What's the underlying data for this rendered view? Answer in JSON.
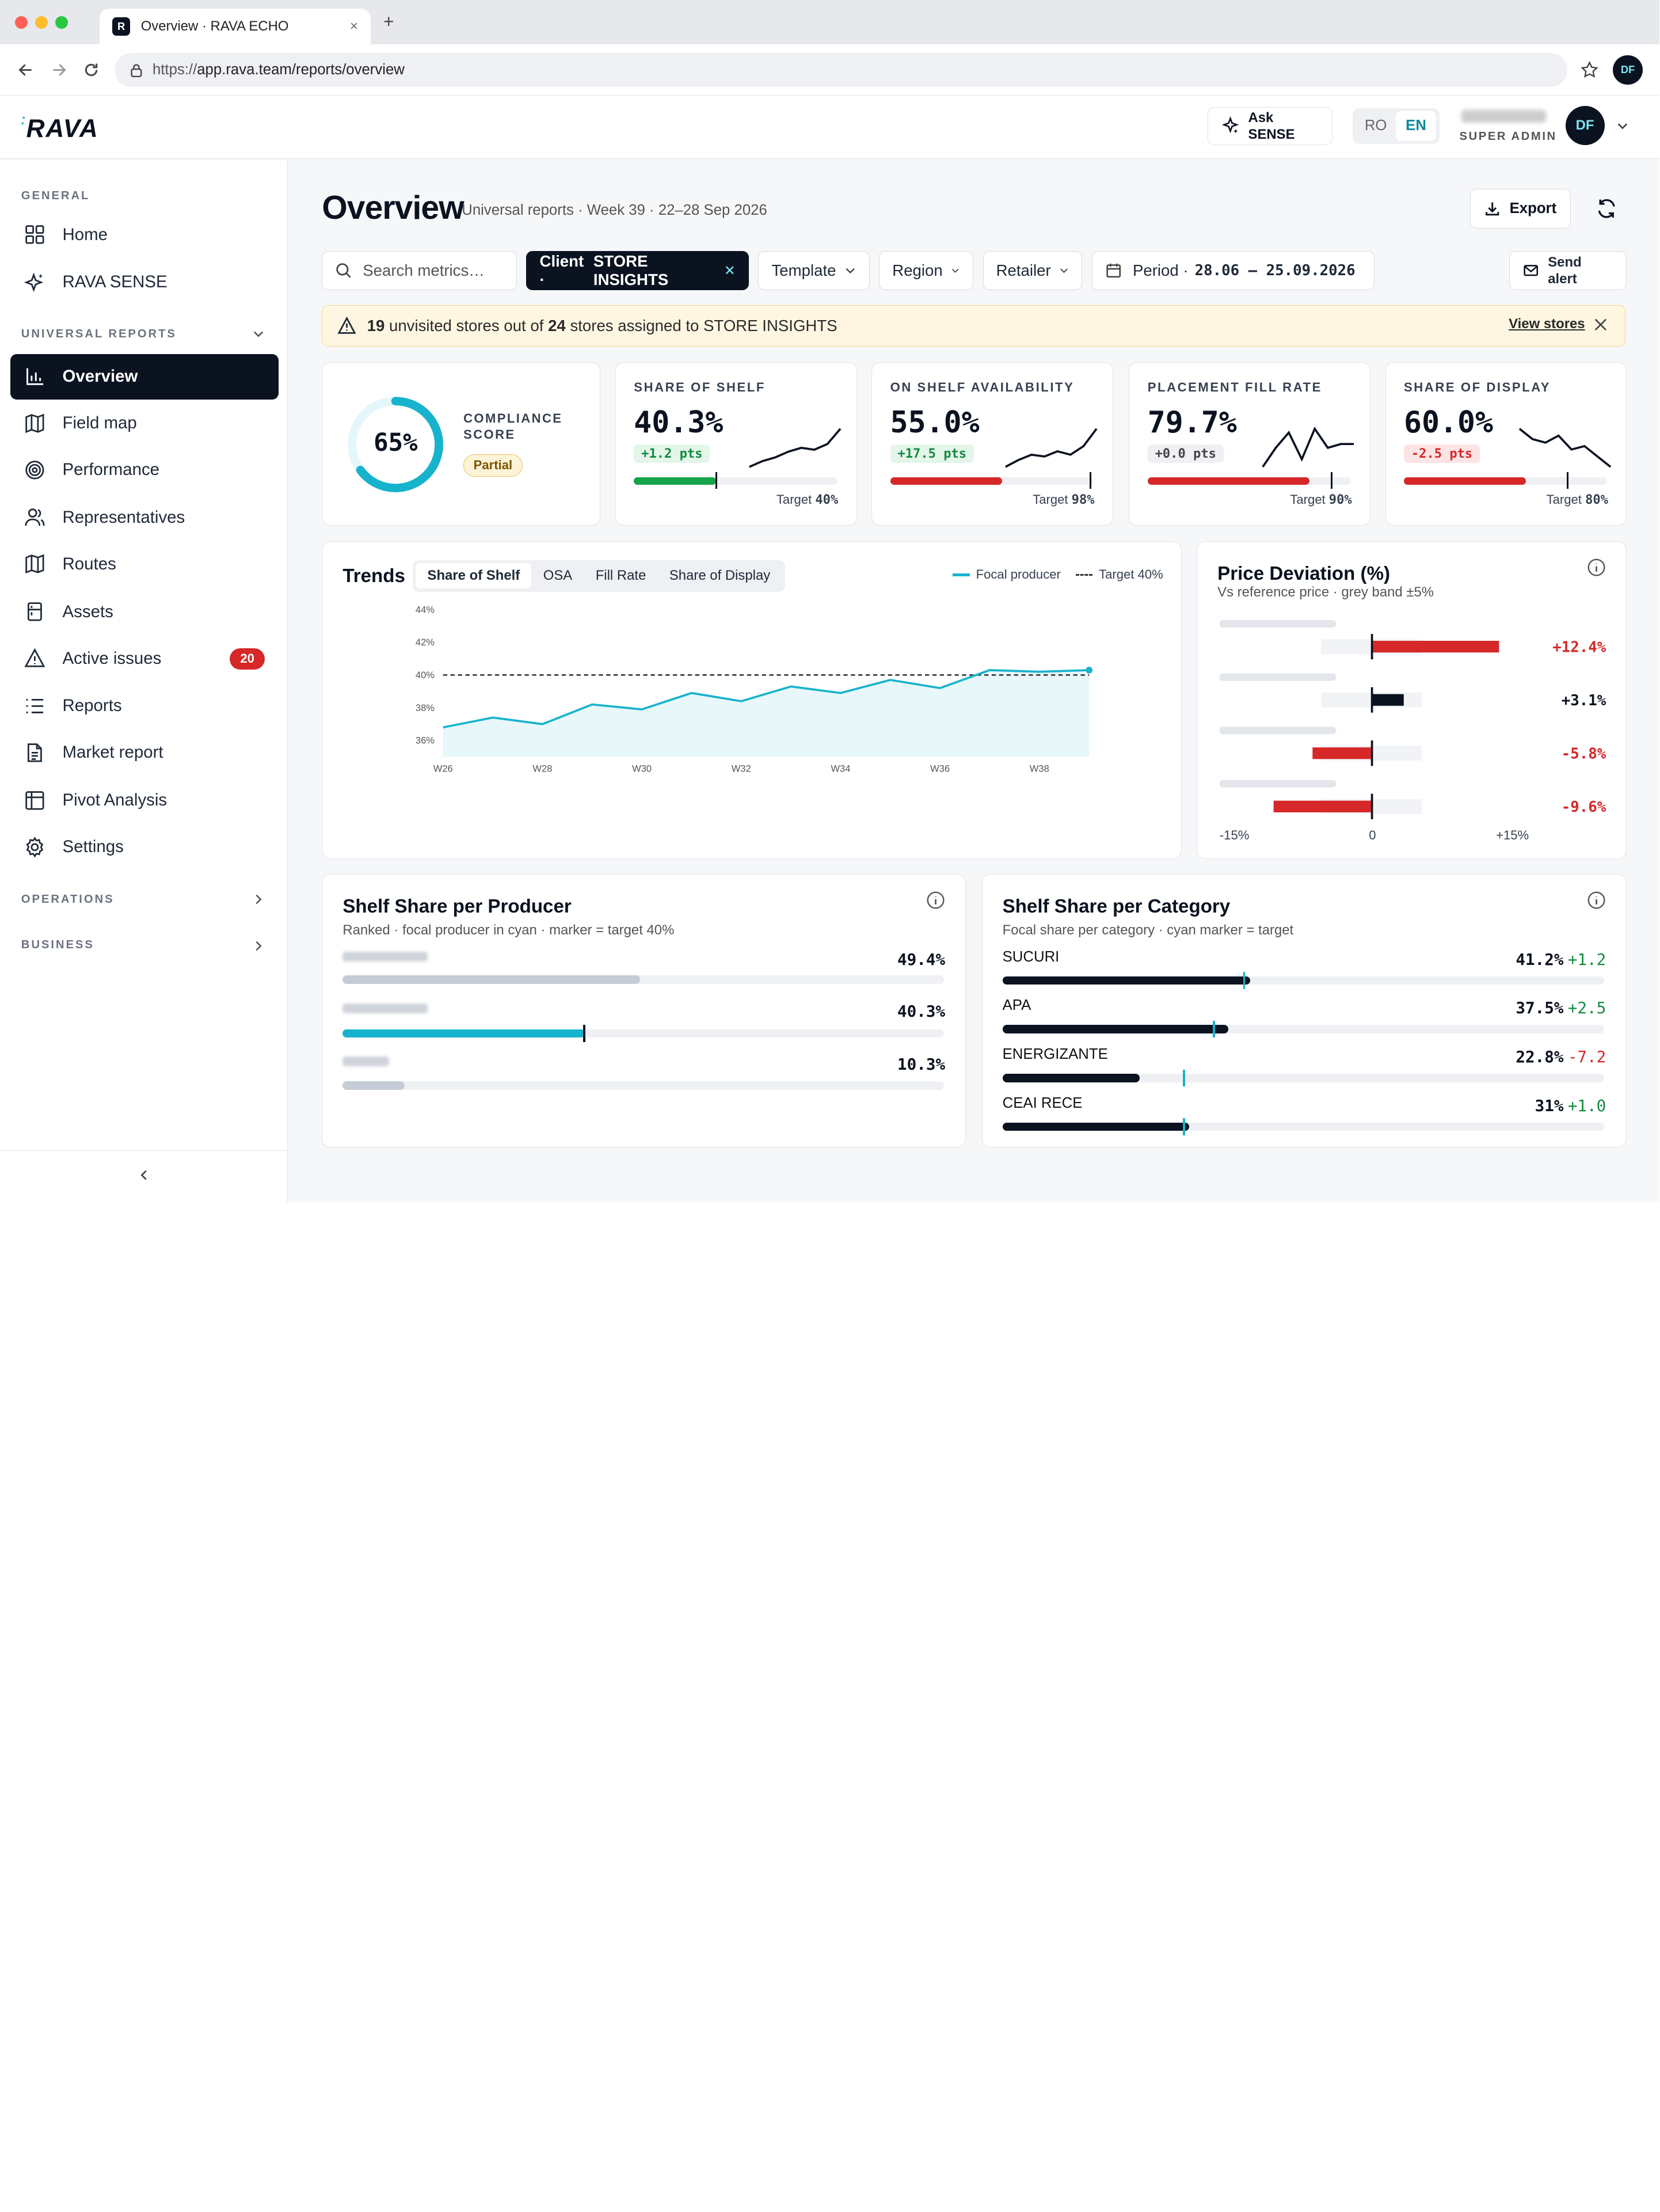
{
  "browser": {
    "tab_title": "Overview · RAVA ECHO",
    "url_prefix": "https://",
    "url_rest": "app.rava.team/reports/overview",
    "profile_initials": "DF"
  },
  "header": {
    "logo": "RAVA",
    "ask_line1": "Ask",
    "ask_line2": "SENSE",
    "lang_ro": "RO",
    "lang_en": "EN",
    "user_role": "SUPER ADMIN",
    "user_initials": "DF"
  },
  "sidebar": {
    "general_label": "GENERAL",
    "universal_label": "UNIVERSAL REPORTS",
    "operations_label": "OPERATIONS",
    "business_label": "BUSINESS",
    "items": [
      {
        "label": "Home"
      },
      {
        "label": "RAVA SENSE"
      },
      {
        "label": "Overview"
      },
      {
        "label": "Field map"
      },
      {
        "label": "Performance"
      },
      {
        "label": "Representatives"
      },
      {
        "label": "Routes"
      },
      {
        "label": "Assets"
      },
      {
        "label": "Active issues",
        "badge": "20"
      },
      {
        "label": "Reports"
      },
      {
        "label": "Market report"
      },
      {
        "label": "Pivot Analysis"
      },
      {
        "label": "Settings"
      }
    ]
  },
  "page": {
    "title": "Overview",
    "subtitle": "Universal reports · Week 39 · 22–28 Sep 2026",
    "export_label": "Export"
  },
  "filters": {
    "search_placeholder": "Search metrics…",
    "client_prefix": "Client ·",
    "client_value": "STORE INSIGHTS",
    "template": "Template",
    "region": "Region",
    "retailer": "Retailer",
    "period_prefix": "Period ·",
    "period_value": "28.06 – 25.09.2026",
    "send_line1": "Send",
    "send_line2": "alert"
  },
  "alert": {
    "count": "19",
    "text1": "unvisited stores out of",
    "total": "24",
    "text2": "stores assigned to STORE INSIGHTS",
    "link": "View stores"
  },
  "compliance": {
    "value": "65%",
    "percent": 65,
    "label_line1": "COMPLIANCE",
    "label_line2": "SCORE",
    "status": "Partial"
  },
  "kpis": [
    {
      "label": "SHARE OF SHELF",
      "value": "40.3%",
      "delta": "+1.2 pts",
      "tone": "pos",
      "progress": 40.3,
      "target_pct": 40,
      "target_label": "Target",
      "target_value": "40%",
      "color": "#16a34a",
      "spark": [
        2,
        3.5,
        4.5,
        6,
        7,
        6.5,
        8,
        12
      ]
    },
    {
      "label": "ON SHELF AVAILABILITY",
      "value": "55.0%",
      "delta": "+17.5 pts",
      "tone": "pos",
      "progress": 55,
      "target_pct": 98,
      "target_label": "Target",
      "target_value": "98%",
      "color": "#d62828",
      "spark": [
        2,
        4,
        5.5,
        5,
        6.5,
        5.5,
        8,
        13
      ]
    },
    {
      "label": "PLACEMENT FILL RATE",
      "value": "79.7%",
      "delta": "+0.0 pts",
      "tone": "neu",
      "progress": 79.7,
      "target_pct": 90,
      "target_label": "Target",
      "target_value": "90%",
      "color": "#d62828",
      "spark": [
        2,
        7,
        11,
        4,
        12,
        7,
        8,
        8
      ]
    },
    {
      "label": "SHARE OF DISPLAY",
      "value": "60.0%",
      "delta": "-2.5 pts",
      "tone": "neg",
      "progress": 60,
      "target_pct": 80,
      "target_label": "Target",
      "target_value": "80%",
      "color": "#d62828",
      "spark": [
        12,
        9,
        8,
        10,
        6,
        7,
        4,
        1
      ]
    }
  ],
  "trends": {
    "title": "Trends",
    "tabs": [
      "Share of Shelf",
      "OSA",
      "Fill Rate",
      "Share of Display"
    ],
    "legend_series": "Focal producer",
    "legend_target": "Target 40%"
  },
  "chart_data": {
    "type": "area",
    "x": [
      "W26",
      "W27",
      "W28",
      "W29",
      "W30",
      "W31",
      "W32",
      "W33",
      "W34",
      "W35",
      "W36",
      "W37",
      "W38",
      "W39"
    ],
    "x_tick_labels": [
      "W26",
      "W28",
      "W30",
      "W32",
      "W34",
      "W36",
      "W38"
    ],
    "y_tick_labels": [
      "44%",
      "42%",
      "40%",
      "38%",
      "36%"
    ],
    "ylim": [
      35,
      44
    ],
    "series": [
      {
        "name": "Focal producer",
        "values": [
          36.8,
          37.4,
          37.0,
          38.2,
          37.9,
          38.9,
          38.4,
          39.3,
          38.9,
          39.7,
          39.2,
          40.3,
          40.2,
          40.3
        ],
        "color": "#17b3cc"
      }
    ],
    "target": 40,
    "target_label": "Target 40%"
  },
  "price_deviation": {
    "title": "Price Deviation (%)",
    "subtitle": "Vs reference price · grey band ±5%",
    "rows": [
      {
        "value": 12.4,
        "label": "+12.4%",
        "tone": "neg"
      },
      {
        "value": 3.1,
        "label": "+3.1%",
        "tone": "dark"
      },
      {
        "value": -5.8,
        "label": "-5.8%",
        "tone": "neg"
      },
      {
        "value": -9.6,
        "label": "-9.6%",
        "tone": "neg"
      }
    ],
    "axis_min": "-15%",
    "axis_mid": "0",
    "axis_max": "+15%"
  },
  "shelf_producer": {
    "title": "Shelf Share per Producer",
    "subtitle": "Ranked · focal producer in cyan · marker = target 40%",
    "rows": [
      {
        "value": 49.4,
        "label": "49.4%",
        "focal": false
      },
      {
        "value": 40.3,
        "label": "40.3%",
        "focal": true
      },
      {
        "value": 10.3,
        "label": "10.3%",
        "focal": false
      }
    ],
    "target": 40
  },
  "shelf_category": {
    "title": "Shelf Share per Category",
    "subtitle": "Focal share per category · cyan marker = target",
    "rows": [
      {
        "name": "SUCURI",
        "value": 41.2,
        "label": "41.2%",
        "delta": "+1.2",
        "tone": "pos",
        "target": 40
      },
      {
        "name": "APA",
        "value": 37.5,
        "label": "37.5%",
        "delta": "+2.5",
        "tone": "pos",
        "target": 35
      },
      {
        "name": "ENERGIZANTE",
        "value": 22.8,
        "label": "22.8%",
        "delta": "-7.2",
        "tone": "neg",
        "target": 30
      },
      {
        "name": "CEAI RECE",
        "value": 31,
        "label": "31%",
        "delta": "+1.0",
        "tone": "pos",
        "target": 30
      }
    ]
  }
}
